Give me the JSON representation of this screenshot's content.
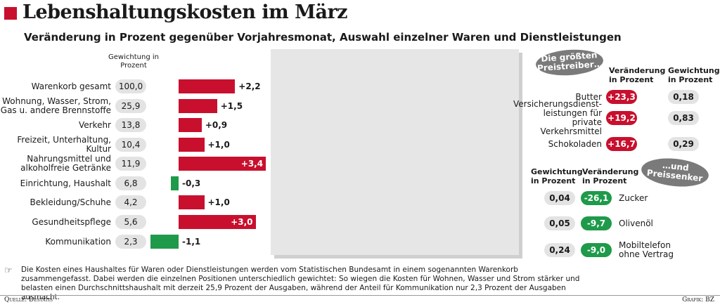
{
  "header": {
    "title": "Lebenshaltungskosten im März",
    "subtitle": "Veränderung in Prozent gegenüber Vorjahresmonat, Auswahl einzelner Waren und Dienstleistungen"
  },
  "colors": {
    "accent": "#c8102e",
    "positive": "#c8102e",
    "negative": "#1e9a4a",
    "pill": "#e3e3e3",
    "bubble": "#7a7a7a"
  },
  "chart_data": {
    "type": "bar",
    "orientation": "horizontal",
    "weight_header": "Gewichtung in Prozent",
    "categories": [
      "Warenkorb gesamt",
      "Wohnung, Wasser, Strom, Gas u. andere Brennstoffe",
      "Verkehr",
      "Freizeit, Unterhaltung, Kultur",
      "Nahrungsmittel und alkoholfreie Getränke",
      "Einrichtung, Haushalt",
      "Bekleidung/Schuhe",
      "Gesundheitspflege",
      "Kommunikation"
    ],
    "weights": [
      "100,0",
      "25,9",
      "13,8",
      "10,4",
      "11,9",
      "6,8",
      "4,2",
      "5,6",
      "2,3"
    ],
    "values": [
      2.2,
      1.5,
      0.9,
      1.0,
      3.4,
      -0.3,
      1.0,
      3.0,
      -1.1
    ],
    "value_labels": [
      "+2,2",
      "+1,5",
      "+0,9",
      "+1,0",
      "+3,4",
      "-0,3",
      "+1,0",
      "+3,0",
      "-1,1"
    ]
  },
  "price_drivers": {
    "bubble": "Die größten Preistreiber…",
    "col_change": "Veränderung in Prozent",
    "col_weight": "Gewichtung in Prozent",
    "items": [
      {
        "name": "Butter",
        "change": "+23,3",
        "weight": "0,18"
      },
      {
        "name": "Versicherungsdienst-leistungen für private Verkehrsmittel",
        "change": "+19,2",
        "weight": "0,83"
      },
      {
        "name": "Schokoladen",
        "change": "+16,7",
        "weight": "0,29"
      }
    ]
  },
  "price_reducers": {
    "bubble": "…und Preissenker",
    "col_weight": "Gewichtung in Prozent",
    "col_change": "Veränderung in Prozent",
    "items": [
      {
        "weight": "0,04",
        "change": "-26,1",
        "name": "Zucker"
      },
      {
        "weight": "0,05",
        "change": "-9,7",
        "name": "Olivenöl"
      },
      {
        "weight": "0,24",
        "change": "-9,0",
        "name": "Mobiltelefon ohne Vertrag"
      }
    ]
  },
  "footnote": "Die Kosten eines Haushaltes für Waren oder Dienstleistungen werden vom Statistischen Bundesamt in einem sogenannten Warenkorb zusammengefasst. Dabei werden die einzelnen Positionen unterschiedlich gewichtet: So wiegen die Kosten für Wohnen, Wasser und Strom stärker und belasten einen Durchschnittshaushalt mit derzeit 25,9 Prozent der Ausgaben, während der Anteil für Kommunikation nur 2,3 Prozent der Ausgaben ausmacht.",
  "footer": {
    "source": "Quelle: Destatis",
    "credit": "Grafik: BZ"
  }
}
